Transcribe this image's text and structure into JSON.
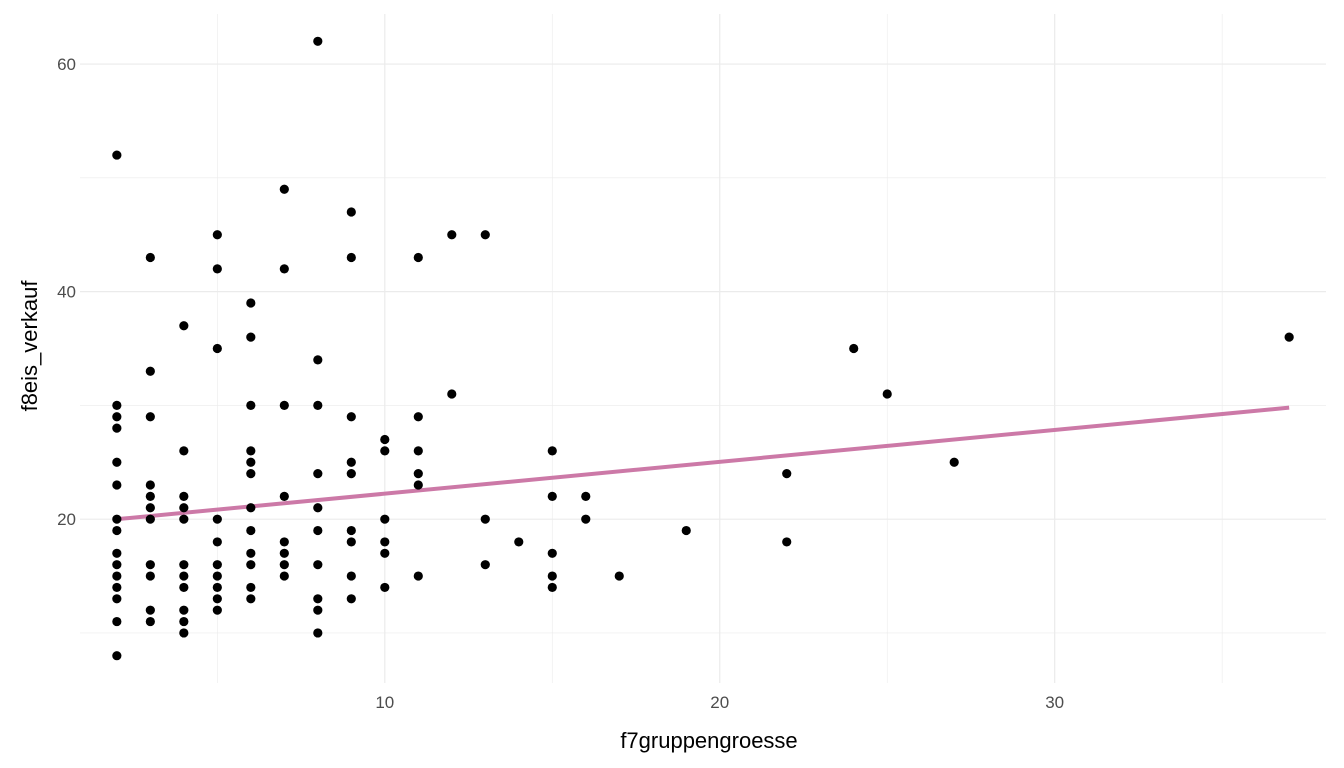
{
  "chart_data": {
    "type": "scatter",
    "title": "",
    "xlabel": "f7gruppengroesse",
    "ylabel": "f8eis_verkauf",
    "xlim": [
      0.9,
      38.1
    ],
    "ylim": [
      5.6,
      64.4
    ],
    "x_ticks": [
      10,
      20,
      30
    ],
    "y_ticks": [
      20,
      40,
      60
    ],
    "grid": true,
    "colors": {
      "points": "#000000",
      "trend_line": "#cc79a7",
      "grid": "#ebebeb"
    },
    "points": [
      [
        2,
        52
      ],
      [
        2,
        30
      ],
      [
        2,
        29
      ],
      [
        2,
        28
      ],
      [
        2,
        25
      ],
      [
        2,
        23
      ],
      [
        2,
        20
      ],
      [
        2,
        19
      ],
      [
        2,
        17
      ],
      [
        2,
        16
      ],
      [
        2,
        15
      ],
      [
        2,
        14
      ],
      [
        2,
        13
      ],
      [
        2,
        11
      ],
      [
        2,
        8
      ],
      [
        3,
        43
      ],
      [
        3,
        33
      ],
      [
        3,
        29
      ],
      [
        3,
        23
      ],
      [
        3,
        22
      ],
      [
        3,
        21
      ],
      [
        3,
        20
      ],
      [
        3,
        16
      ],
      [
        3,
        15
      ],
      [
        3,
        12
      ],
      [
        3,
        11
      ],
      [
        4,
        37
      ],
      [
        4,
        26
      ],
      [
        4,
        22
      ],
      [
        4,
        21
      ],
      [
        4,
        20
      ],
      [
        4,
        16
      ],
      [
        4,
        15
      ],
      [
        4,
        14
      ],
      [
        4,
        12
      ],
      [
        4,
        11
      ],
      [
        4,
        10
      ],
      [
        5,
        45
      ],
      [
        5,
        42
      ],
      [
        5,
        35
      ],
      [
        5,
        20
      ],
      [
        5,
        18
      ],
      [
        5,
        16
      ],
      [
        5,
        15
      ],
      [
        5,
        14
      ],
      [
        5,
        13
      ],
      [
        5,
        12
      ],
      [
        6,
        39
      ],
      [
        6,
        36
      ],
      [
        6,
        30
      ],
      [
        6,
        26
      ],
      [
        6,
        25
      ],
      [
        6,
        24
      ],
      [
        6,
        21
      ],
      [
        6,
        19
      ],
      [
        6,
        17
      ],
      [
        6,
        16
      ],
      [
        6,
        14
      ],
      [
        6,
        13
      ],
      [
        7,
        49
      ],
      [
        7,
        42
      ],
      [
        7,
        30
      ],
      [
        7,
        22
      ],
      [
        7,
        18
      ],
      [
        7,
        17
      ],
      [
        7,
        16
      ],
      [
        7,
        15
      ],
      [
        8,
        62
      ],
      [
        8,
        34
      ],
      [
        8,
        30
      ],
      [
        8,
        24
      ],
      [
        8,
        21
      ],
      [
        8,
        19
      ],
      [
        8,
        16
      ],
      [
        8,
        13
      ],
      [
        8,
        12
      ],
      [
        8,
        10
      ],
      [
        9,
        47
      ],
      [
        9,
        43
      ],
      [
        9,
        29
      ],
      [
        9,
        25
      ],
      [
        9,
        24
      ],
      [
        9,
        19
      ],
      [
        9,
        18
      ],
      [
        9,
        15
      ],
      [
        9,
        13
      ],
      [
        10,
        27
      ],
      [
        10,
        26
      ],
      [
        10,
        20
      ],
      [
        10,
        18
      ],
      [
        10,
        17
      ],
      [
        10,
        14
      ],
      [
        11,
        43
      ],
      [
        11,
        29
      ],
      [
        11,
        26
      ],
      [
        11,
        24
      ],
      [
        11,
        23
      ],
      [
        11,
        15
      ],
      [
        12,
        45
      ],
      [
        12,
        31
      ],
      [
        13,
        45
      ],
      [
        13,
        20
      ],
      [
        13,
        16
      ],
      [
        14,
        18
      ],
      [
        15,
        26
      ],
      [
        15,
        22
      ],
      [
        15,
        17
      ],
      [
        15,
        15
      ],
      [
        15,
        14
      ],
      [
        16,
        22
      ],
      [
        16,
        20
      ],
      [
        17,
        15
      ],
      [
        19,
        19
      ],
      [
        22,
        24
      ],
      [
        22,
        18
      ],
      [
        24,
        35
      ],
      [
        25,
        31
      ],
      [
        27,
        25
      ],
      [
        37,
        36
      ]
    ],
    "trend_line": {
      "x": [
        2,
        37
      ],
      "y": [
        20,
        29.8
      ]
    }
  }
}
